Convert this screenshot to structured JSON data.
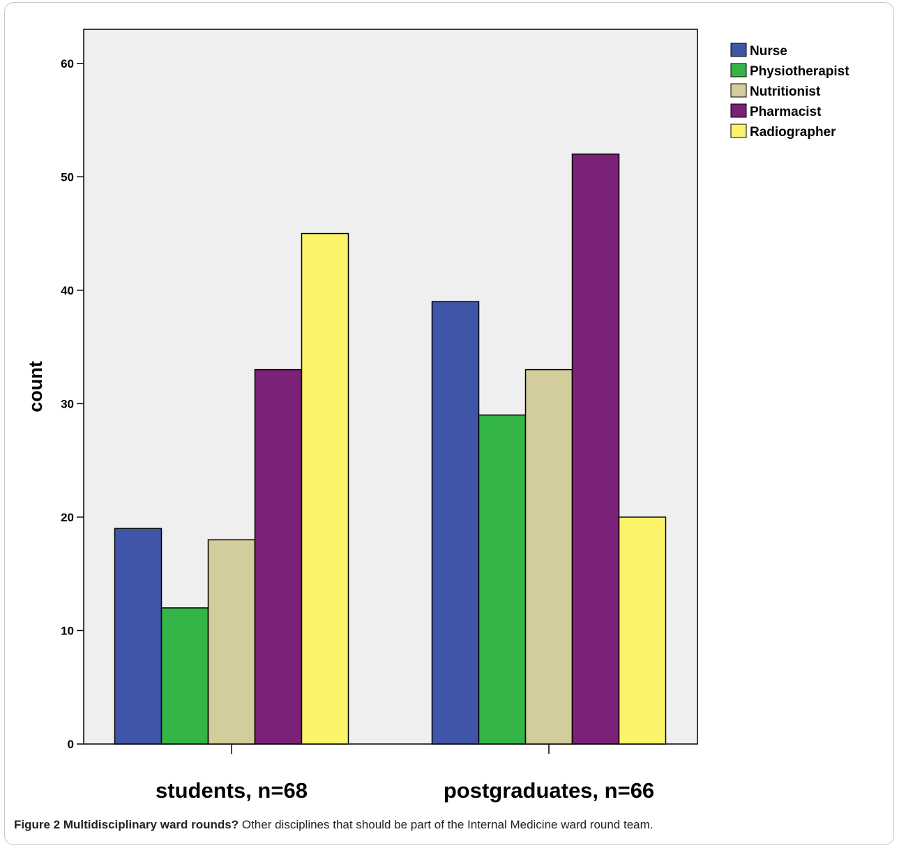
{
  "chart_data": {
    "type": "bar",
    "categories": [
      "students, n=68",
      "postgraduates, n=66"
    ],
    "series": [
      {
        "name": "Nurse",
        "values": [
          19,
          39
        ],
        "color": "#3f56a8"
      },
      {
        "name": "Physiotherapist",
        "values": [
          12,
          29
        ],
        "color": "#33b548"
      },
      {
        "name": "Nutritionist",
        "values": [
          18,
          33
        ],
        "color": "#d3cc9b"
      },
      {
        "name": "Pharmacist",
        "values": [
          33,
          52
        ],
        "color": "#7b2177"
      },
      {
        "name": "Radiographer",
        "values": [
          45,
          20
        ],
        "color": "#faf46a"
      }
    ],
    "ylabel": "count",
    "xlabel": "",
    "ylim": [
      0,
      63
    ],
    "yticks": [
      0,
      10,
      20,
      30,
      40,
      50,
      60
    ],
    "legend_position": "top-right",
    "plot_background": "#efefef"
  },
  "caption": {
    "label": "Figure 2",
    "title": "Multidisciplinary ward rounds?",
    "text": "Other disciplines that should be part of the Internal Medicine ward round team."
  }
}
